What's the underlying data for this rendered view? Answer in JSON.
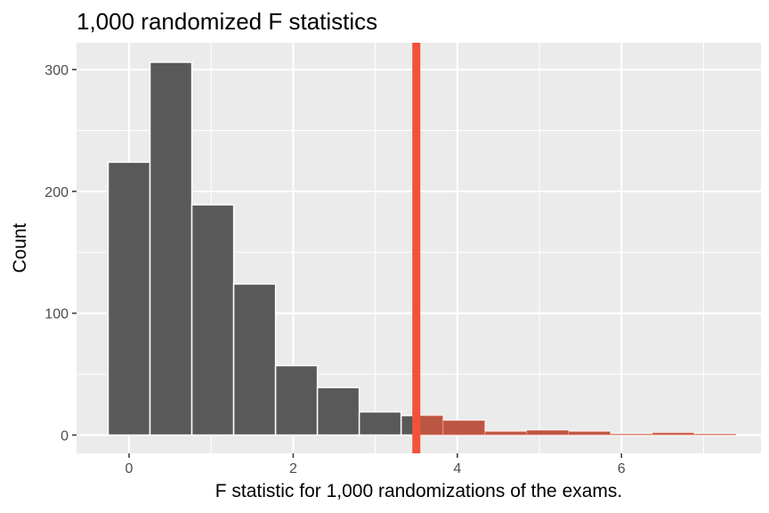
{
  "chart_data": {
    "type": "bar",
    "title": "1,000 randomized F statistics",
    "xlabel": "F statistic for 1,000 randomizations of the exams.",
    "ylabel": "Count",
    "xlim": [
      -0.64,
      7.7
    ],
    "ylim": [
      -15,
      322
    ],
    "x_ticks": [
      0,
      2,
      4,
      6
    ],
    "y_ticks": [
      0,
      100,
      200,
      300
    ],
    "x_minor_ticks": [
      1,
      3,
      5,
      7
    ],
    "y_minor_ticks": [
      50,
      150,
      250
    ],
    "grid": true,
    "bin_width": 0.51,
    "bins": [
      {
        "x0": -0.255,
        "x1": 0.255,
        "count": 224
      },
      {
        "x0": 0.255,
        "x1": 0.765,
        "count": 306
      },
      {
        "x0": 0.765,
        "x1": 1.275,
        "count": 189
      },
      {
        "x0": 1.275,
        "x1": 1.785,
        "count": 124
      },
      {
        "x0": 1.785,
        "x1": 2.295,
        "count": 57
      },
      {
        "x0": 2.295,
        "x1": 2.805,
        "count": 39
      },
      {
        "x0": 2.805,
        "x1": 3.315,
        "count": 19
      },
      {
        "x0": 3.315,
        "x1": 3.825,
        "count": 16
      },
      {
        "x0": 3.825,
        "x1": 4.335,
        "count": 12
      },
      {
        "x0": 4.335,
        "x1": 4.845,
        "count": 3
      },
      {
        "x0": 4.845,
        "x1": 5.355,
        "count": 4
      },
      {
        "x0": 5.355,
        "x1": 5.865,
        "count": 3
      },
      {
        "x0": 5.865,
        "x1": 6.375,
        "count": 1
      },
      {
        "x0": 6.375,
        "x1": 6.885,
        "count": 2
      },
      {
        "x0": 6.885,
        "x1": 7.395,
        "count": 1
      }
    ],
    "observed_statistic": 3.5,
    "colors": {
      "panel": "#EBEBEB",
      "grid": "#FFFFFF",
      "bar_fill": "#595959",
      "bar_outline": "#FFFFFF",
      "shade": "#D7563D",
      "observed_line": "#F4513A"
    }
  }
}
